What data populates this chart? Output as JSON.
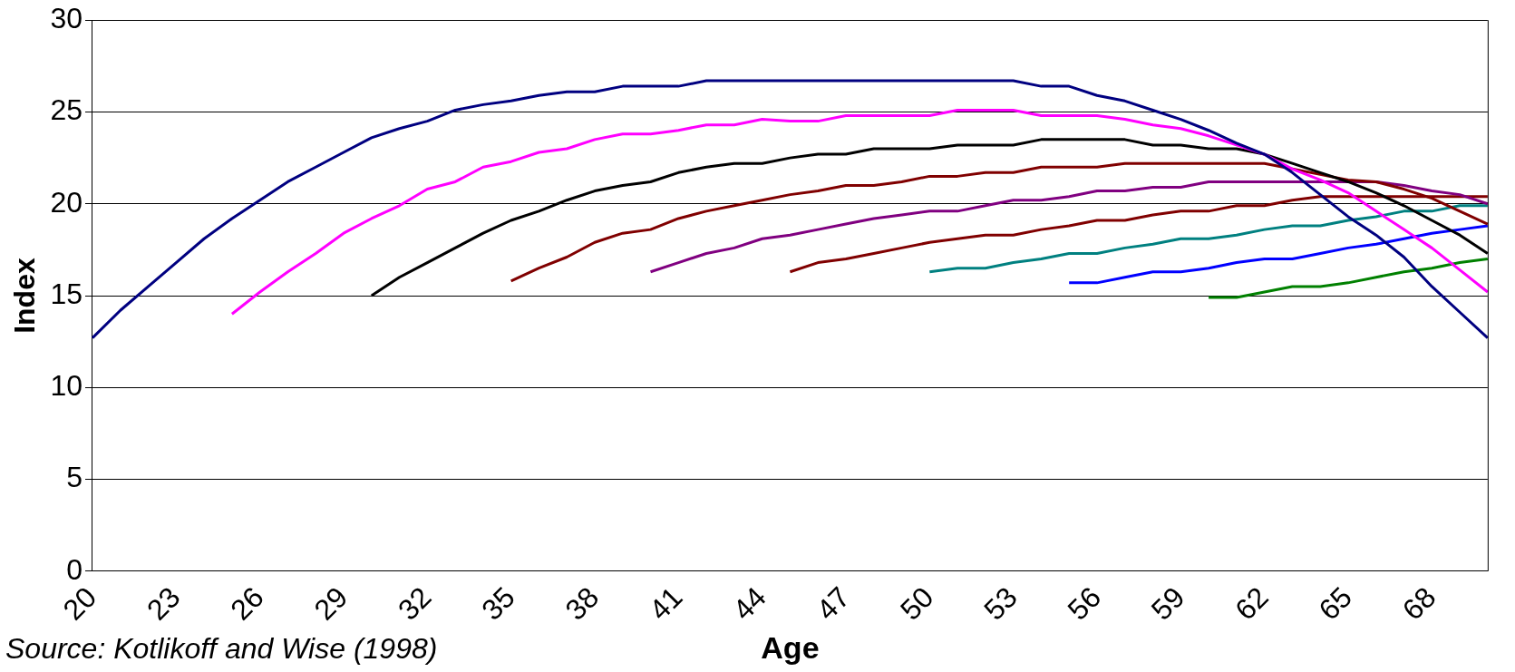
{
  "chart_data": {
    "type": "line",
    "xlabel": "Age",
    "ylabel": "Index",
    "annotations": [
      "Source: Kotlikoff and Wise (1998)"
    ],
    "categories": [
      "20",
      null,
      null,
      "23",
      null,
      null,
      "26",
      null,
      null,
      "29",
      null,
      null,
      "32",
      null,
      null,
      "35",
      null,
      null,
      "38",
      null,
      null,
      "41",
      null,
      null,
      "44",
      null,
      null,
      "47",
      null,
      null,
      "50",
      null,
      null,
      "53",
      null,
      null,
      "56",
      null,
      null,
      "59",
      null,
      null,
      "62",
      null,
      null,
      "65",
      null,
      null,
      "68",
      null,
      null
    ],
    "ylim": [
      0,
      30
    ],
    "yticks": [
      0,
      5,
      10,
      15,
      20,
      25,
      30
    ],
    "grid": "y",
    "series": [
      {
        "color": "#000080",
        "values": [
          12.7,
          14.2,
          15.5,
          16.8,
          18.1,
          19.2,
          20.2,
          21.2,
          22.0,
          22.8,
          23.6,
          24.1,
          24.5,
          25.1,
          25.4,
          25.6,
          25.9,
          26.1,
          26.1,
          26.4,
          26.4,
          26.4,
          26.7,
          26.7,
          26.7,
          26.7,
          26.7,
          26.7,
          26.7,
          26.7,
          26.7,
          26.7,
          26.7,
          26.7,
          26.4,
          26.4,
          25.9,
          25.6,
          25.1,
          24.6,
          24.0,
          23.3,
          22.7,
          21.7,
          20.5,
          19.3,
          18.3,
          17.1,
          15.5,
          14.1,
          12.7
        ]
      },
      {
        "color": "#ff00ff",
        "values": [
          null,
          null,
          null,
          null,
          null,
          14.0,
          15.2,
          16.3,
          17.3,
          18.4,
          19.2,
          19.9,
          20.8,
          21.2,
          22.0,
          22.3,
          22.8,
          23.0,
          23.5,
          23.8,
          23.8,
          24.0,
          24.3,
          24.3,
          24.6,
          24.5,
          24.5,
          24.8,
          24.8,
          24.8,
          24.8,
          25.1,
          25.1,
          25.1,
          24.8,
          24.8,
          24.8,
          24.6,
          24.3,
          24.1,
          23.7,
          23.2,
          22.7,
          21.9,
          21.3,
          20.6,
          19.6,
          18.6,
          17.6,
          16.4,
          15.2
        ]
      },
      {
        "color": "#000000",
        "values": [
          null,
          null,
          null,
          null,
          null,
          null,
          null,
          null,
          null,
          null,
          15.0,
          16.0,
          16.8,
          17.6,
          18.4,
          19.1,
          19.6,
          20.2,
          20.7,
          21.0,
          21.2,
          21.7,
          22.0,
          22.2,
          22.2,
          22.5,
          22.7,
          22.7,
          23.0,
          23.0,
          23.0,
          23.2,
          23.2,
          23.2,
          23.5,
          23.5,
          23.5,
          23.5,
          23.2,
          23.2,
          23.0,
          23.0,
          22.7,
          22.2,
          21.7,
          21.2,
          20.6,
          19.9,
          19.1,
          18.3,
          17.3
        ]
      },
      {
        "color": "#800000",
        "values": [
          null,
          null,
          null,
          null,
          null,
          null,
          null,
          null,
          null,
          null,
          null,
          null,
          null,
          null,
          null,
          15.8,
          16.5,
          17.1,
          17.9,
          18.4,
          18.6,
          19.2,
          19.6,
          19.9,
          20.2,
          20.5,
          20.7,
          21.0,
          21.0,
          21.2,
          21.5,
          21.5,
          21.7,
          21.7,
          22.0,
          22.0,
          22.0,
          22.2,
          22.2,
          22.2,
          22.2,
          22.2,
          22.2,
          21.9,
          21.6,
          21.3,
          21.2,
          20.8,
          20.3,
          19.6,
          18.9
        ]
      },
      {
        "color": "#800080",
        "values": [
          null,
          null,
          null,
          null,
          null,
          null,
          null,
          null,
          null,
          null,
          null,
          null,
          null,
          null,
          null,
          null,
          null,
          null,
          null,
          null,
          16.3,
          16.8,
          17.3,
          17.6,
          18.1,
          18.3,
          18.6,
          18.9,
          19.2,
          19.4,
          19.6,
          19.6,
          19.9,
          20.2,
          20.2,
          20.4,
          20.7,
          20.7,
          20.9,
          20.9,
          21.2,
          21.2,
          21.2,
          21.2,
          21.2,
          21.2,
          21.2,
          21.0,
          20.7,
          20.5,
          20.0
        ]
      },
      {
        "color": "#800000",
        "values": [
          null,
          null,
          null,
          null,
          null,
          null,
          null,
          null,
          null,
          null,
          null,
          null,
          null,
          null,
          null,
          null,
          null,
          null,
          null,
          null,
          null,
          null,
          null,
          null,
          null,
          16.3,
          16.8,
          17.0,
          17.3,
          17.6,
          17.9,
          18.1,
          18.3,
          18.3,
          18.6,
          18.8,
          19.1,
          19.1,
          19.4,
          19.6,
          19.6,
          19.9,
          19.9,
          20.2,
          20.4,
          20.4,
          20.4,
          20.4,
          20.4,
          20.4,
          20.4
        ]
      },
      {
        "color": "#008080",
        "values": [
          null,
          null,
          null,
          null,
          null,
          null,
          null,
          null,
          null,
          null,
          null,
          null,
          null,
          null,
          null,
          null,
          null,
          null,
          null,
          null,
          null,
          null,
          null,
          null,
          null,
          null,
          null,
          null,
          null,
          null,
          16.3,
          16.5,
          16.5,
          16.8,
          17.0,
          17.3,
          17.3,
          17.6,
          17.8,
          18.1,
          18.1,
          18.3,
          18.6,
          18.8,
          18.8,
          19.1,
          19.3,
          19.6,
          19.6,
          19.9,
          19.9
        ]
      },
      {
        "color": "#0000ff",
        "values": [
          null,
          null,
          null,
          null,
          null,
          null,
          null,
          null,
          null,
          null,
          null,
          null,
          null,
          null,
          null,
          null,
          null,
          null,
          null,
          null,
          null,
          null,
          null,
          null,
          null,
          null,
          null,
          null,
          null,
          null,
          null,
          null,
          null,
          null,
          null,
          15.7,
          15.7,
          16.0,
          16.3,
          16.3,
          16.5,
          16.8,
          17.0,
          17.0,
          17.3,
          17.6,
          17.8,
          18.1,
          18.4,
          18.6,
          18.8
        ]
      },
      {
        "color": "#008000",
        "values": [
          null,
          null,
          null,
          null,
          null,
          null,
          null,
          null,
          null,
          null,
          null,
          null,
          null,
          null,
          null,
          null,
          null,
          null,
          null,
          null,
          null,
          null,
          null,
          null,
          null,
          null,
          null,
          null,
          null,
          null,
          null,
          null,
          null,
          null,
          null,
          null,
          null,
          null,
          null,
          null,
          14.9,
          14.9,
          15.2,
          15.5,
          15.5,
          15.7,
          16.0,
          16.3,
          16.5,
          16.8,
          17.0
        ]
      }
    ]
  }
}
